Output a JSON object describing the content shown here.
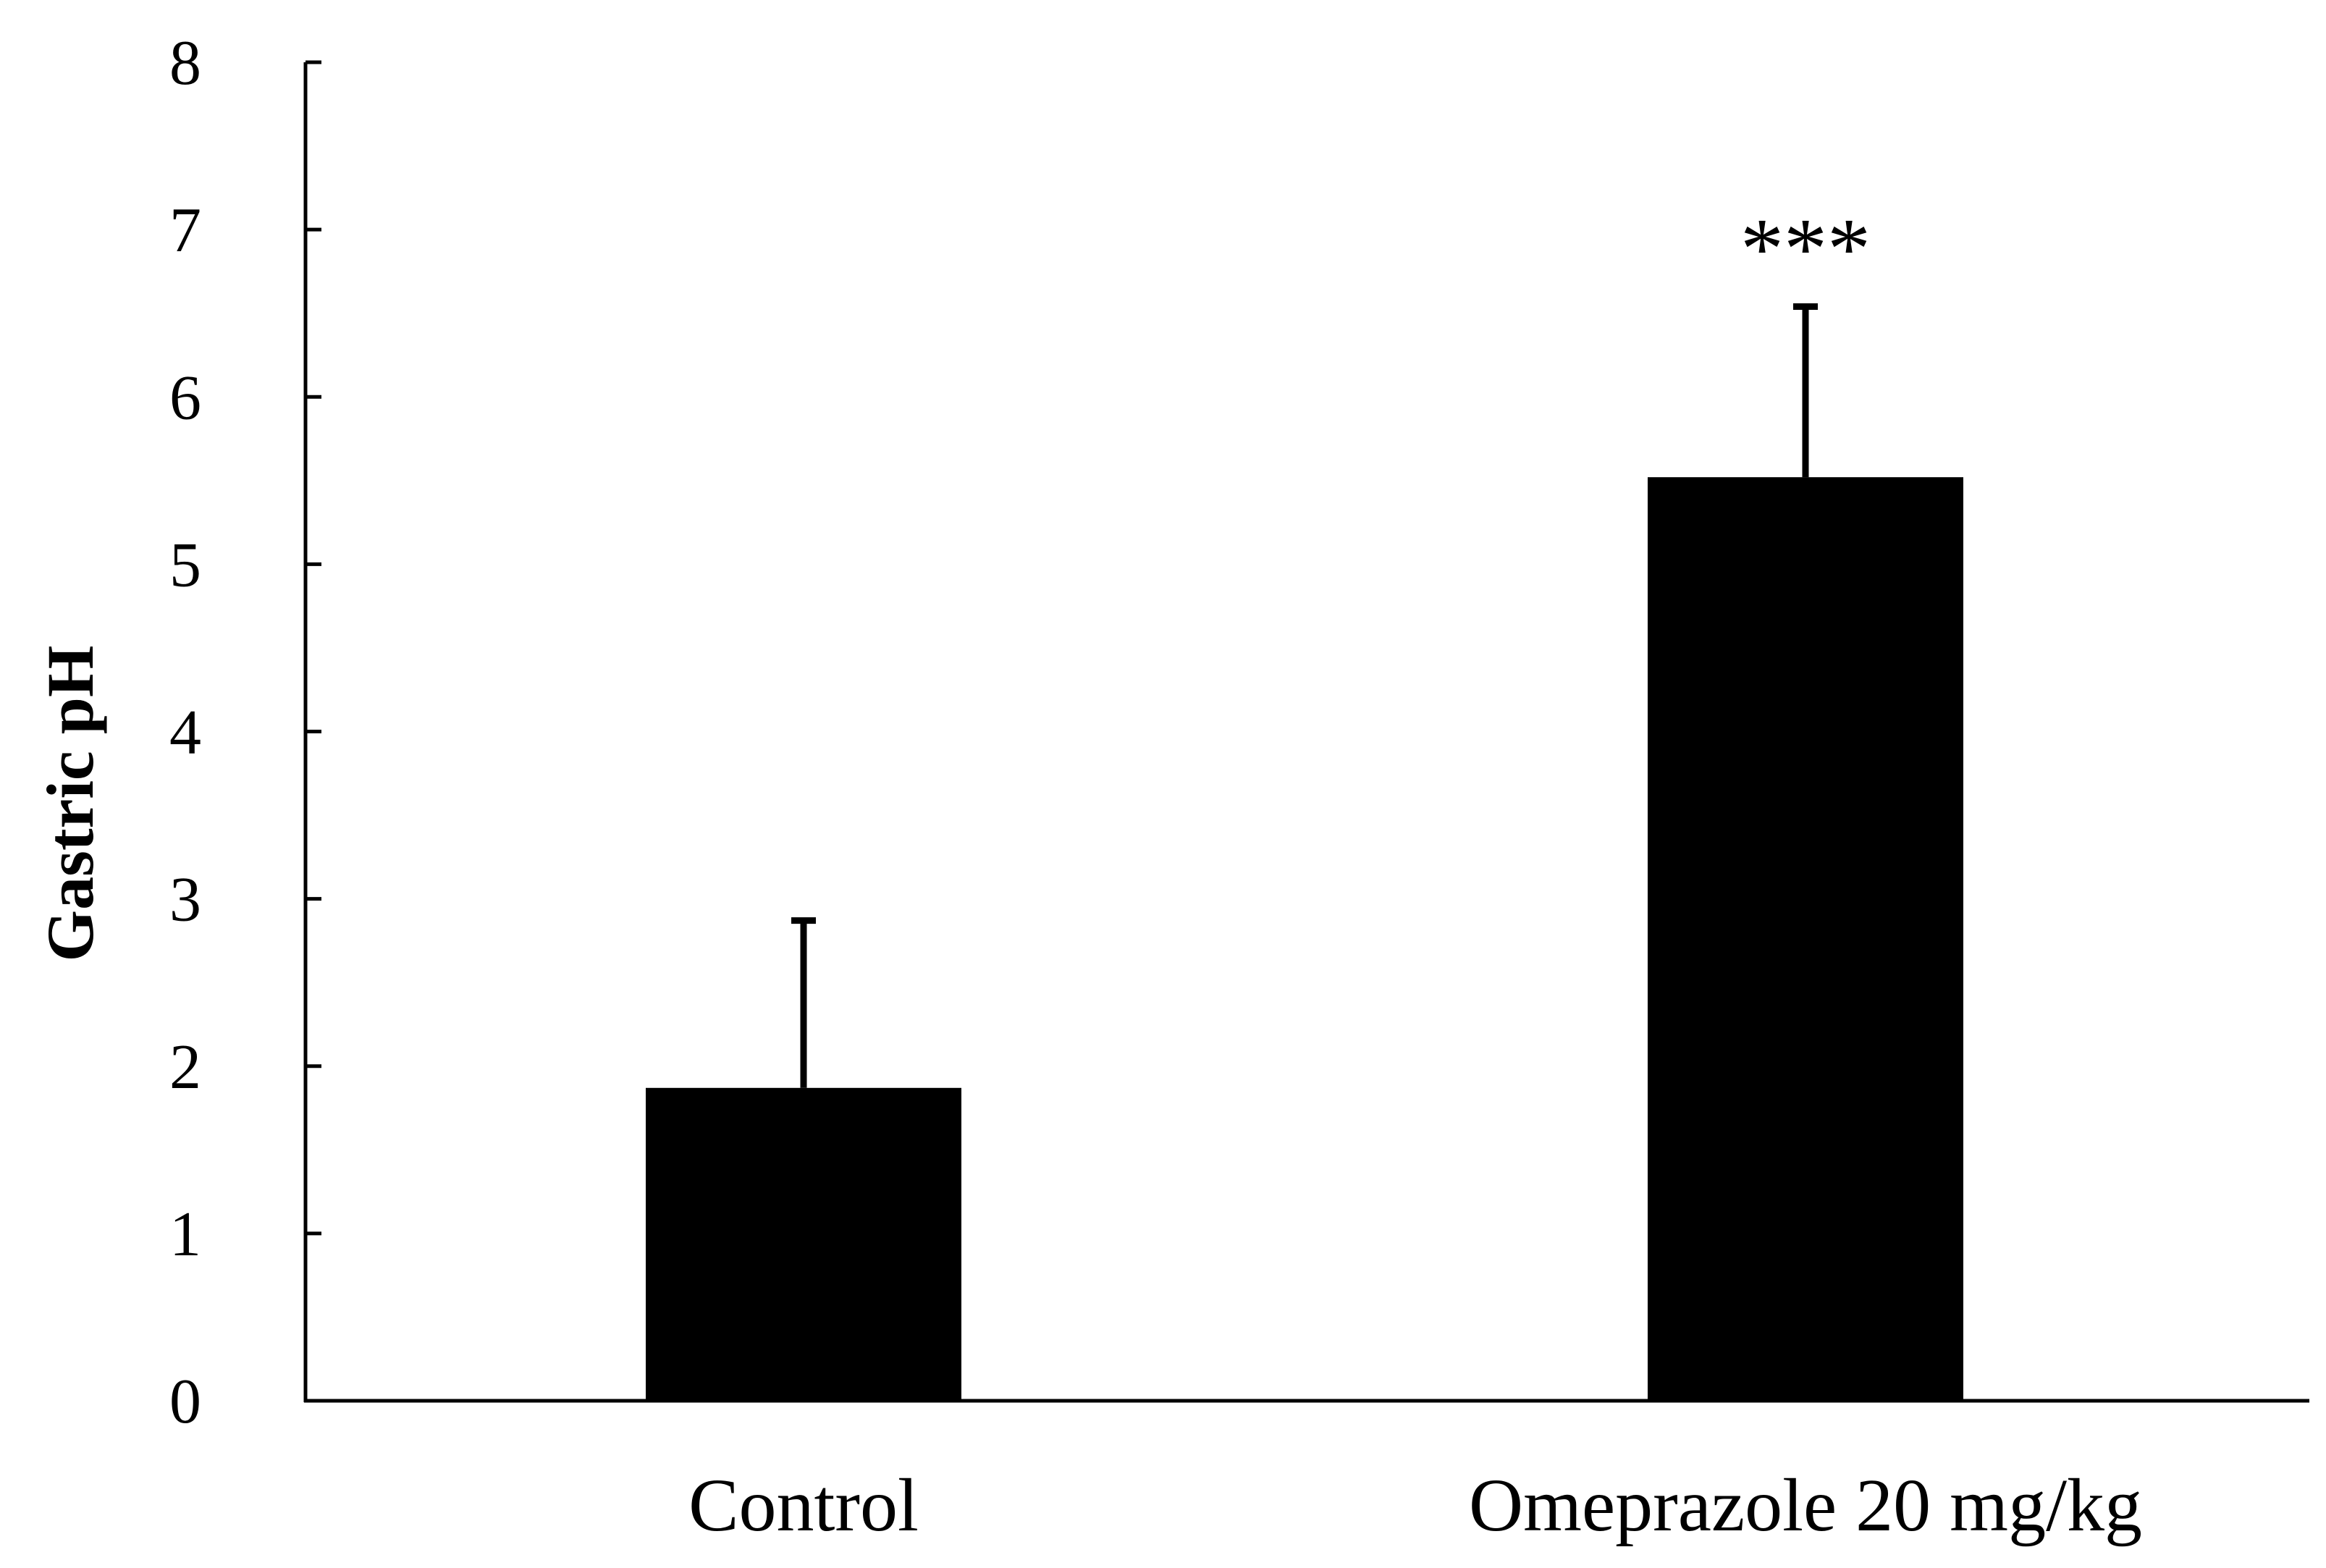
{
  "chart_data": {
    "type": "bar",
    "title": "",
    "xlabel": "",
    "ylabel": "Gastric pH",
    "ylim": [
      0,
      8
    ],
    "yticks": [
      "0",
      "1",
      "2",
      "3",
      "4",
      "5",
      "6",
      "7",
      "8"
    ],
    "grid": false,
    "categories": [
      "Control",
      "Omeprazole 20 mg/kg"
    ],
    "values": [
      1.87,
      5.52
    ],
    "error_plus": [
      1.0,
      1.02
    ],
    "annotations": [
      "",
      "***"
    ],
    "colors": {
      "bar": "#000000",
      "axis": "#000000",
      "background": "#ffffff"
    }
  }
}
